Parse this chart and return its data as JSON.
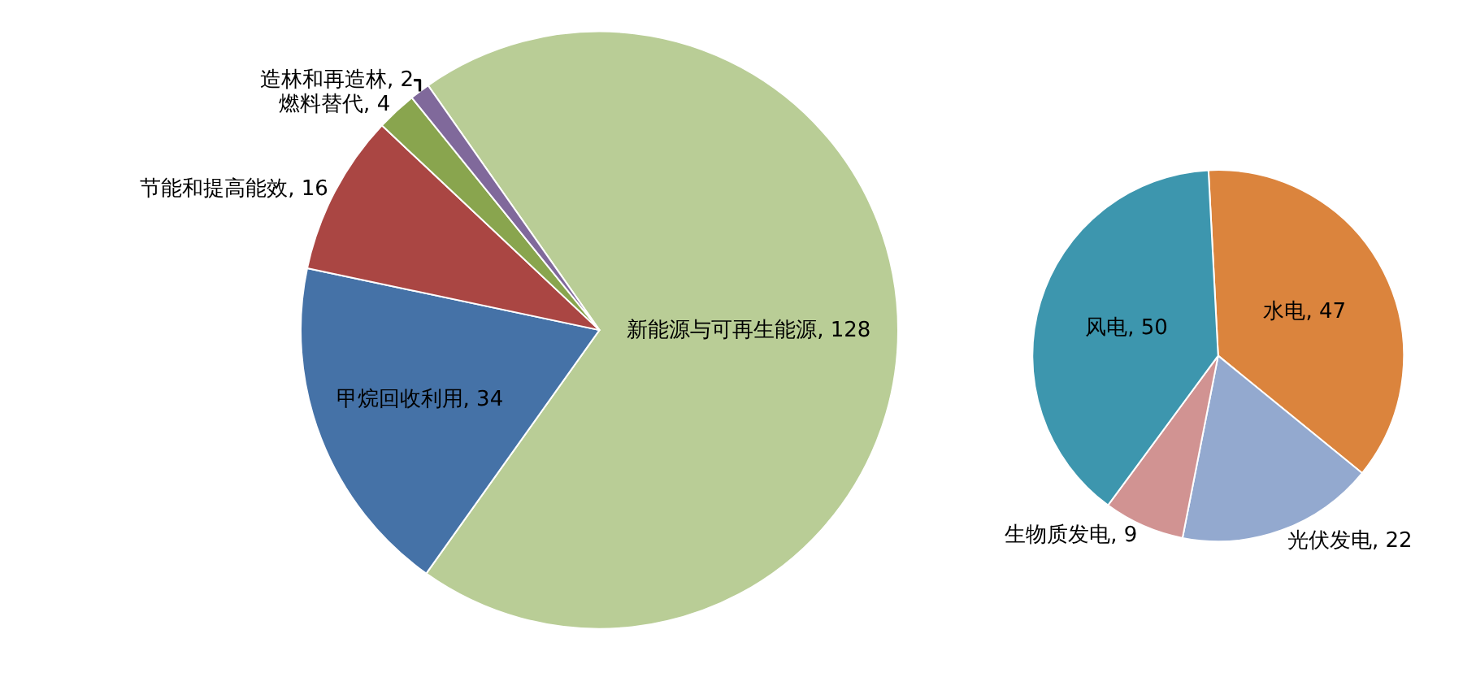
{
  "chart_data": [
    {
      "type": "pie",
      "categories": [
        "新能源与可再生能源",
        "甲烷回收利用",
        "节能和提高能效",
        "燃料替代",
        "造林和再造林"
      ],
      "values": [
        128,
        34,
        16,
        4,
        2
      ],
      "value_labels": [
        "128",
        "34",
        "16",
        "4",
        "2"
      ],
      "colors": [
        "#b9cd96",
        "#4572a7",
        "#aa4643",
        "#89a54e",
        "#80699b"
      ]
    },
    {
      "type": "pie",
      "categories": [
        "水电",
        "光伏发电",
        "生物质发电",
        "风电"
      ],
      "values": [
        47,
        22,
        9,
        50
      ],
      "value_labels": [
        "47",
        "22",
        "9",
        "50"
      ],
      "colors": [
        "#db843d",
        "#93a9cf",
        "#d19392",
        "#3d96ae"
      ]
    }
  ]
}
